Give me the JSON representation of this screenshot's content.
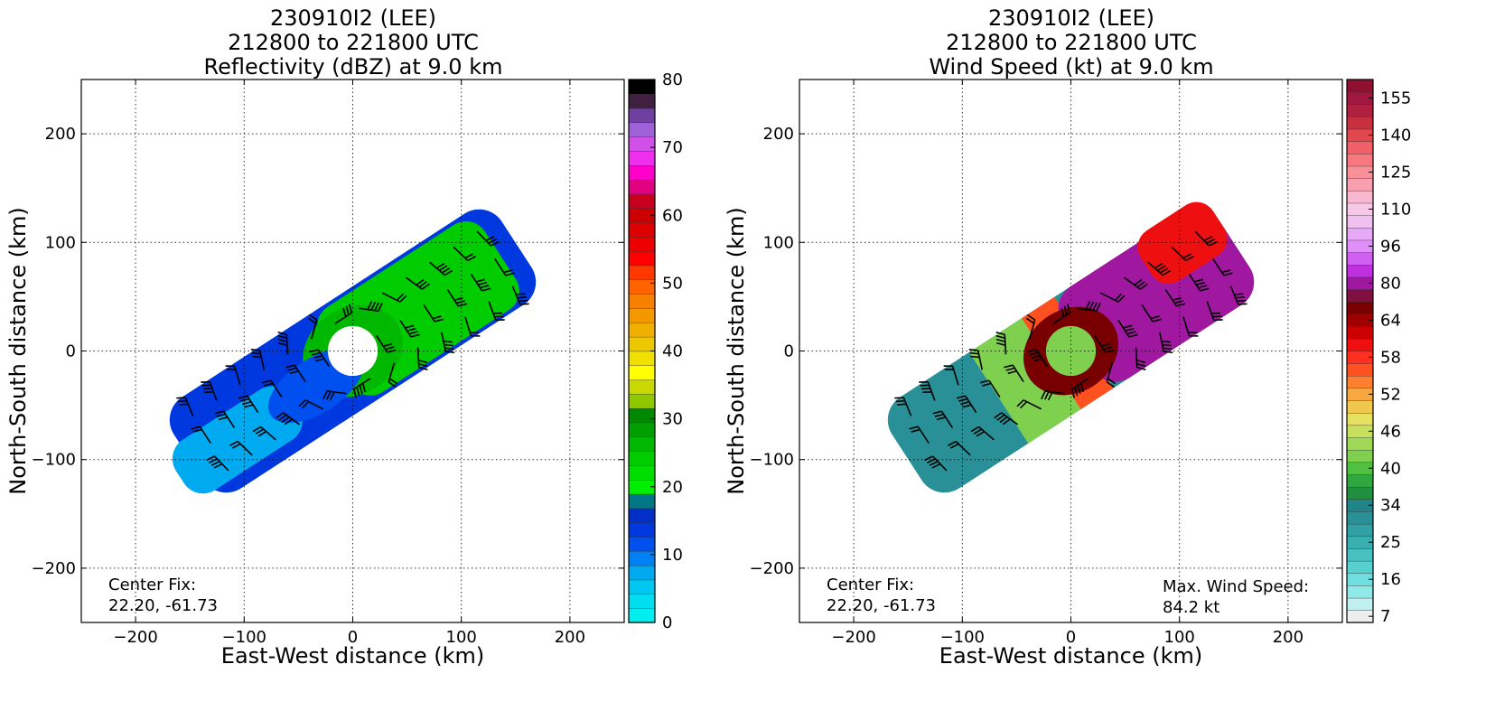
{
  "chart_data": [
    {
      "type": "heatmap",
      "title_lines": [
        "230910I2 (LEE)",
        "212800 to 221800 UTC",
        "Reflectivity (dBZ) at 9.0 km"
      ],
      "xlabel": "East-West distance (km)",
      "ylabel": "North-South distance (km)",
      "xlim": [
        -250,
        250
      ],
      "ylim": [
        -250,
        250
      ],
      "xticks": [
        -200,
        -100,
        0,
        100,
        200
      ],
      "yticks": [
        -200,
        -100,
        0,
        100,
        200
      ],
      "xtick_labels": [
        "−200",
        "−100",
        "0",
        "100",
        "200"
      ],
      "ytick_labels": [
        "−200",
        "−100",
        "0",
        "100",
        "200"
      ],
      "grid": true,
      "center_fix": [
        "Center Fix:",
        "22.20, -61.73"
      ],
      "colorbar": {
        "label_values": [
          0,
          10,
          20,
          30,
          40,
          50,
          60,
          70,
          80
        ],
        "label_text": [
          "0",
          "10",
          "20",
          "30",
          "40",
          "50",
          "60",
          "70",
          "80"
        ],
        "colors": [
          "#00eeee",
          "#00ddee",
          "#00c8f0",
          "#00aaf0",
          "#0080f5",
          "#0050f0",
          "#0038e0",
          "#0030c8",
          "#007888",
          "#00ee00",
          "#00dd00",
          "#00cc00",
          "#00b800",
          "#00a000",
          "#008800",
          "#90c800",
          "#c8d800",
          "#ffff00",
          "#f0e000",
          "#ecc800",
          "#f0b000",
          "#f49800",
          "#f88000",
          "#ff6400",
          "#ff3800",
          "#ff0000",
          "#ee0000",
          "#dd0000",
          "#cc0000",
          "#c80020",
          "#e00080",
          "#ff00c8",
          "#ee30ee",
          "#d050e8",
          "#a060d8",
          "#7040a0",
          "#402040",
          "#000000"
        ]
      },
      "storm": {
        "band_center": [
          0,
          0
        ],
        "band_angle_deg": 33,
        "band_length_km": 360,
        "band_width_km": 100,
        "eye_center": [
          0,
          0
        ],
        "eye_radius_km": 18
      }
    },
    {
      "type": "heatmap",
      "title_lines": [
        "230910I2 (LEE)",
        "212800 to 221800 UTC",
        "Wind Speed (kt) at 9.0 km"
      ],
      "xlabel": "East-West distance (km)",
      "ylabel": "North-South distance (km)",
      "xlim": [
        -250,
        250
      ],
      "ylim": [
        -250,
        250
      ],
      "xticks": [
        -200,
        -100,
        0,
        100,
        200
      ],
      "yticks": [
        -200,
        -100,
        0,
        100,
        200
      ],
      "xtick_labels": [
        "−200",
        "−100",
        "0",
        "100",
        "200"
      ],
      "ytick_labels": [
        "−200",
        "−100",
        "0",
        "100",
        "200"
      ],
      "grid": true,
      "center_fix": [
        "Center Fix:",
        "22.20, -61.73"
      ],
      "max_wind": [
        "Max. Wind Speed:",
        "84.2 kt"
      ],
      "colorbar": {
        "label_text": [
          "7",
          "16",
          "25",
          "34",
          "40",
          "46",
          "52",
          "58",
          "64",
          "80",
          "96",
          "110",
          "125",
          "140",
          "155"
        ],
        "label_bins": [
          0.5,
          3.5,
          6.5,
          9.5,
          12.5,
          15.5,
          18.5,
          21.5,
          24.5,
          27.5,
          30.5,
          33.5,
          36.5,
          39.5,
          42.5
        ],
        "colors": [
          "#eeeeee",
          "#c0f0f0",
          "#90e8e8",
          "#70dede",
          "#58d0d0",
          "#48c0c0",
          "#38b0b0",
          "#30a0a4",
          "#289096",
          "#208488",
          "#209040",
          "#30a840",
          "#50c040",
          "#80d050",
          "#a0d858",
          "#c8e060",
          "#e8e060",
          "#f0c850",
          "#f8a840",
          "#ff8030",
          "#ff5020",
          "#ff3020",
          "#ee1010",
          "#cc0000",
          "#a00000",
          "#780000",
          "#801040",
          "#a018a0",
          "#c030e0",
          "#d060f0",
          "#e090f8",
          "#e8a8f8",
          "#f0c0f0",
          "#f8c8e8",
          "#f8b8d0",
          "#f8a0b0",
          "#f89098",
          "#f87880",
          "#f06068",
          "#e04850",
          "#c83040",
          "#b02040",
          "#a01840",
          "#901030"
        ]
      },
      "storm": {
        "band_center": [
          0,
          0
        ],
        "band_angle_deg": 33,
        "band_length_km": 360,
        "band_width_km": 100,
        "eye_center": [
          0,
          0
        ],
        "eye_radius_km": 18
      }
    }
  ]
}
